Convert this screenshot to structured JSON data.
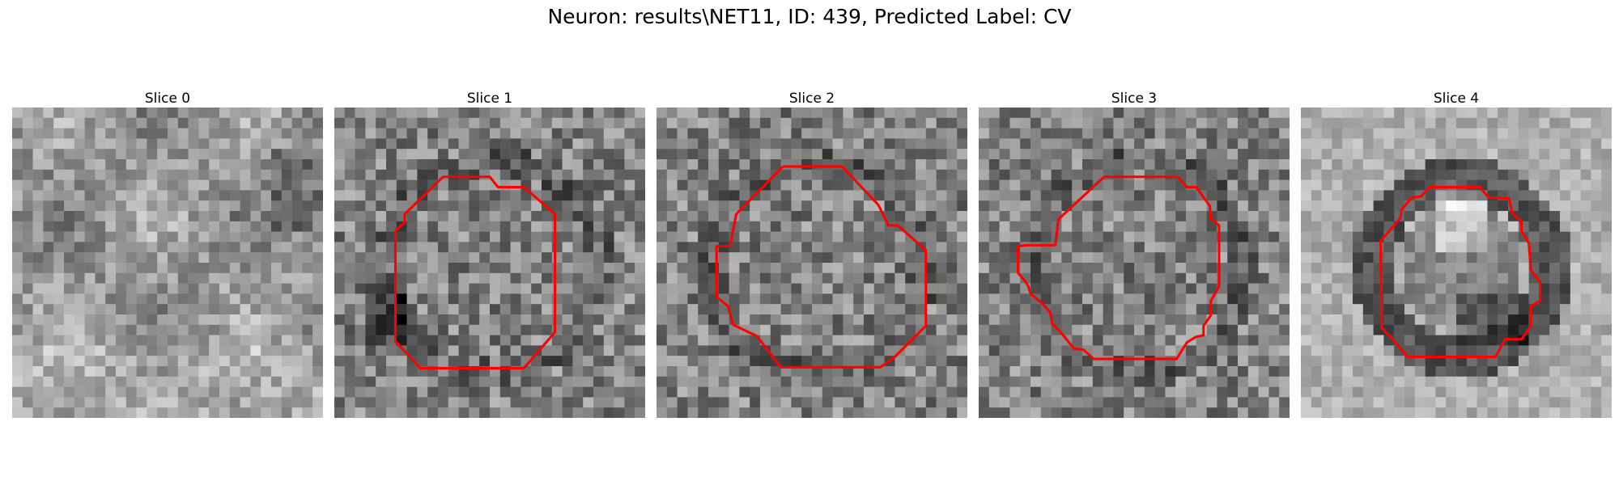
{
  "figure": {
    "title": "Neuron: results\\NET11, ID: 439, Predicted Label: CV"
  },
  "panels": [
    {
      "title": "Slice 0",
      "has_contour": false,
      "contour_color": "#ff0000"
    },
    {
      "title": "Slice 1",
      "has_contour": true,
      "contour_color": "#ff0000"
    },
    {
      "title": "Slice 2",
      "has_contour": true,
      "contour_color": "#ff0000"
    },
    {
      "title": "Slice 3",
      "has_contour": true,
      "contour_color": "#ff0000"
    },
    {
      "title": "Slice 4",
      "has_contour": true,
      "contour_color": "#ff0000"
    }
  ]
}
